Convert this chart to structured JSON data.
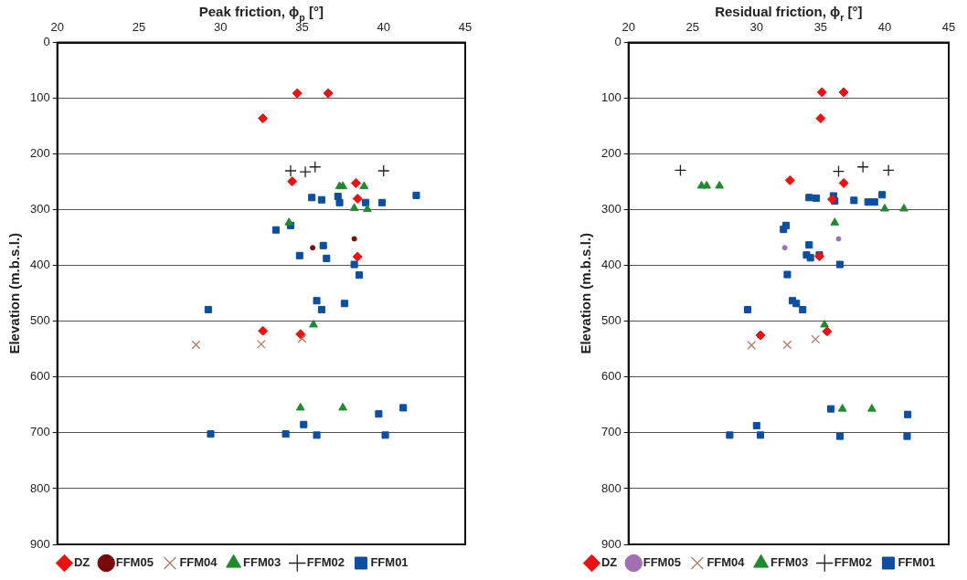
{
  "chart_data": [
    {
      "type": "scatter",
      "xlabel": "Peak friction, ϕ$_{p}$ [°]",
      "ylabel": "Elevation (m.b.s.l.)",
      "xlim": [
        20,
        45
      ],
      "xticks": [
        20,
        25,
        30,
        35,
        40,
        45
      ],
      "ylim": [
        900,
        0
      ],
      "yticks": [
        0,
        100,
        200,
        300,
        400,
        500,
        600,
        700,
        800,
        900
      ],
      "grid": "y",
      "legend": "bottom",
      "series": [
        {
          "name": "FFM01",
          "color": "#0b4ea2",
          "marker": "square",
          "x": [
            35.6,
            36.2,
            37.2,
            37.3,
            38.9,
            39.9,
            42.0,
            33.4,
            34.3,
            34.85,
            36.3,
            36.5,
            38.2,
            38.5,
            29.25,
            35.9,
            36.2,
            37.6,
            41.2,
            39.7,
            35.1,
            29.4,
            34.0,
            35.9,
            40.1
          ],
          "values": [
            278,
            282,
            276,
            287,
            287,
            287,
            274,
            336,
            328,
            382,
            364,
            387,
            398,
            417,
            479,
            463,
            479,
            468,
            655,
            666,
            685,
            702,
            702,
            704,
            704
          ]
        },
        {
          "name": "FFM02",
          "color": "#222222",
          "marker": "cross",
          "x": [
            34.3,
            35.2,
            35.8,
            40.0
          ],
          "values": [
            230,
            232,
            223,
            230
          ]
        },
        {
          "name": "FFM03",
          "color": "#1f8a2e",
          "marker": "triangle",
          "x": [
            37.3,
            37.5,
            38.8,
            38.2,
            39.0,
            34.2,
            35.7,
            34.9,
            37.5
          ],
          "values": [
            258,
            258,
            258,
            297,
            299,
            323,
            506,
            655,
            655
          ]
        },
        {
          "name": "FFM04",
          "color": "#b07a6a",
          "marker": "x",
          "x": [
            28.5,
            32.5,
            35.0
          ],
          "values": [
            542,
            541,
            531
          ]
        },
        {
          "name": "FFM05",
          "color": "#7a0a0a",
          "marker": "circle",
          "x": [
            35.65,
            38.2
          ],
          "values": [
            368,
            352
          ]
        },
        {
          "name": "DZ",
          "color": "#ee1111",
          "marker": "diamond",
          "x": [
            34.7,
            36.6,
            32.6,
            34.4,
            38.3,
            38.4,
            38.4,
            32.6,
            34.9
          ],
          "values": [
            91,
            91,
            136,
            249,
            252,
            280,
            384,
            517,
            523
          ]
        }
      ]
    },
    {
      "type": "scatter",
      "xlabel": "Residual friction, ϕ$_{r}$ [°]",
      "ylabel": "Elevation (m.b.s.l.)",
      "xlim": [
        20,
        45
      ],
      "xticks": [
        20,
        25,
        30,
        35,
        40,
        45
      ],
      "ylim": [
        900,
        0
      ],
      "yticks": [
        0,
        100,
        200,
        300,
        400,
        500,
        600,
        700,
        800,
        900
      ],
      "grid": "y",
      "legend": "bottom",
      "series": [
        {
          "name": "FFM01",
          "color": "#0b4ea2",
          "marker": "square",
          "x": [
            34.1,
            34.65,
            36.0,
            36.1,
            37.6,
            38.7,
            39.2,
            39.8,
            32.1,
            32.3,
            34.1,
            33.9,
            34.2,
            34.9,
            36.5,
            32.4,
            32.8,
            33.1,
            33.6,
            29.3,
            35.8,
            41.8,
            30.0,
            27.9,
            30.3,
            36.5,
            41.75
          ],
          "values": [
            278,
            279,
            275,
            284,
            283,
            286,
            286,
            273,
            335,
            328,
            363,
            381,
            386,
            381,
            398,
            416,
            463,
            468,
            479,
            479,
            657,
            667,
            687,
            704,
            704,
            706,
            706
          ]
        },
        {
          "name": "FFM02",
          "color": "#222222",
          "marker": "cross",
          "x": [
            24.05,
            36.4,
            38.3,
            40.3
          ],
          "values": [
            229,
            231,
            223,
            229
          ]
        },
        {
          "name": "FFM03",
          "color": "#1f8a2e",
          "marker": "triangle",
          "x": [
            25.7,
            26.1,
            27.1,
            40.0,
            41.5,
            36.1,
            35.3,
            36.7,
            39.0
          ],
          "values": [
            257,
            257,
            257,
            298,
            298,
            323,
            506,
            657,
            657
          ]
        },
        {
          "name": "FFM04",
          "color": "#b07a6a",
          "marker": "x",
          "x": [
            29.6,
            32.4,
            34.6
          ],
          "values": [
            543,
            542,
            532
          ]
        },
        {
          "name": "FFM05",
          "color": "#a070b0",
          "marker": "circle",
          "x": [
            32.2,
            36.4
          ],
          "values": [
            368,
            352
          ]
        },
        {
          "name": "DZ",
          "color": "#ee1111",
          "marker": "diamond",
          "x": [
            35.1,
            36.8,
            35.0,
            32.6,
            36.8,
            35.9,
            34.9,
            35.5,
            30.3
          ],
          "values": [
            89,
            89,
            136,
            247,
            252,
            281,
            383,
            518,
            525
          ]
        }
      ]
    }
  ]
}
